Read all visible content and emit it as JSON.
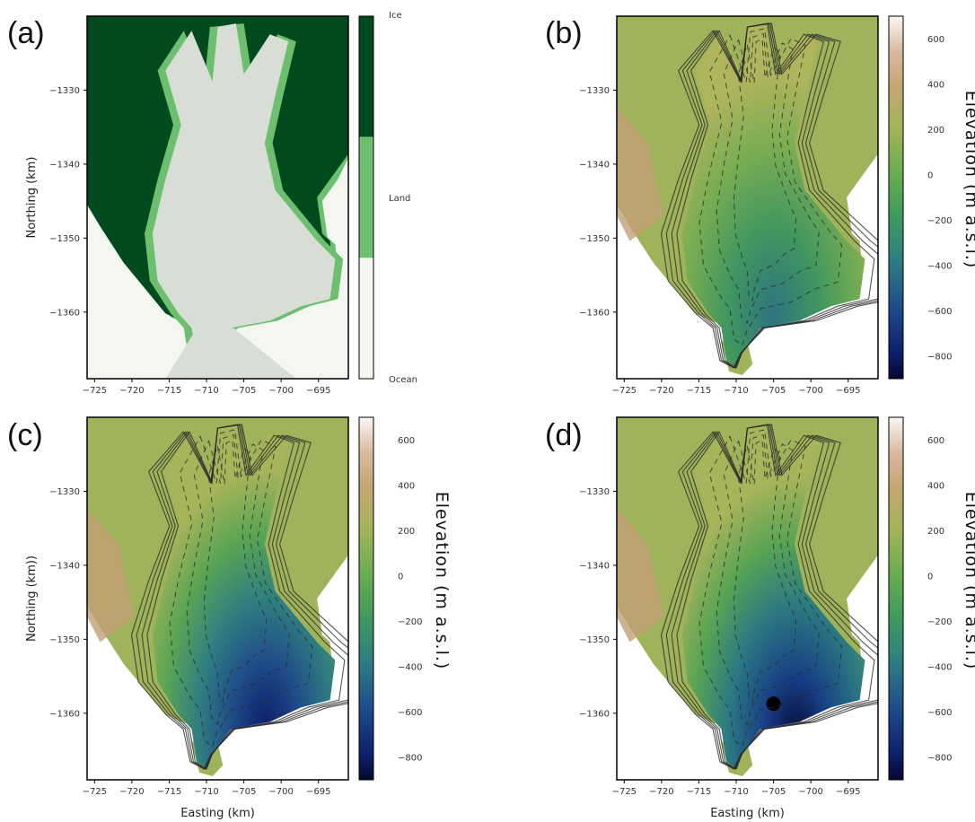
{
  "chart_data": [
    {
      "id": "a",
      "type": "heatmap",
      "panel_label": "(a)",
      "xlabel": "",
      "ylabel": "Northing (km)",
      "xlim": [
        -726,
        -691
      ],
      "ylim": [
        -1369,
        -1320
      ],
      "xticks": [
        -725,
        -720,
        -715,
        -710,
        -705,
        -700,
        -695
      ],
      "yticks": [
        -1330,
        -1340,
        -1350,
        -1360
      ],
      "colorbar": {
        "type": "categorical",
        "labels": [
          "Ice",
          "Land",
          "Ocean"
        ],
        "colors": [
          "#004b1e",
          "#6cbf6e",
          "#f3f7ef"
        ]
      }
    },
    {
      "id": "b",
      "type": "heatmap",
      "panel_label": "(b)",
      "xlabel": "",
      "ylabel": "",
      "xlim": [
        -726,
        -691
      ],
      "ylim": [
        -1369,
        -1320
      ],
      "xticks": [
        -725,
        -720,
        -715,
        -710,
        -705,
        -700,
        -695
      ],
      "yticks": [
        -1330,
        -1340,
        -1350,
        -1360
      ],
      "colorbar": {
        "type": "continuous",
        "label": "Elevation (m a.s.l.)",
        "range": [
          -900,
          700
        ],
        "ticks": [
          600,
          400,
          200,
          0,
          -200,
          -400,
          -600,
          -800
        ]
      }
    },
    {
      "id": "c",
      "type": "heatmap",
      "panel_label": "(c)",
      "xlabel": "Easting (km)",
      "ylabel": "Northing (km))",
      "xlim": [
        -726,
        -691
      ],
      "ylim": [
        -1369,
        -1320
      ],
      "xticks": [
        -725,
        -720,
        -715,
        -710,
        -705,
        -700,
        -695
      ],
      "yticks": [
        -1330,
        -1340,
        -1350,
        -1360
      ],
      "colorbar": {
        "type": "continuous",
        "label": "Elevation (m a.s.l.)",
        "range": [
          -900,
          700
        ],
        "ticks": [
          600,
          400,
          200,
          0,
          -200,
          -400,
          -600,
          -800
        ]
      }
    },
    {
      "id": "d",
      "type": "heatmap",
      "panel_label": "(d)",
      "xlabel": "Easting (km)",
      "ylabel": "",
      "xlim": [
        -726,
        -691
      ],
      "ylim": [
        -1369,
        -1320
      ],
      "xticks": [
        -725,
        -720,
        -715,
        -710,
        -705,
        -700,
        -695
      ],
      "yticks": [
        -1330,
        -1340,
        -1350,
        -1360
      ],
      "colorbar": {
        "type": "continuous",
        "label": "Elevation (m a.s.l.)",
        "range": [
          -900,
          700
        ],
        "ticks": [
          600,
          400,
          200,
          0,
          -200,
          -400,
          -600,
          -800
        ]
      }
    }
  ]
}
